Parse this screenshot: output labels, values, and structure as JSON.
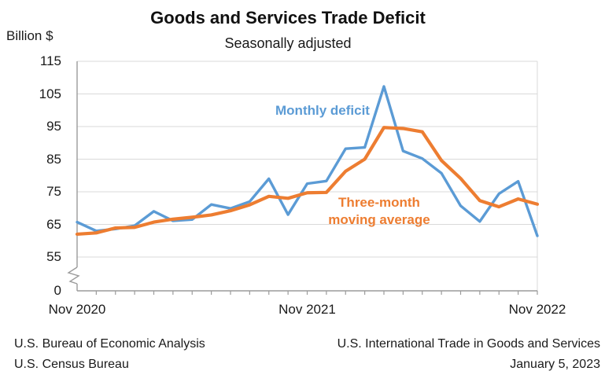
{
  "header": {
    "title": "Goods and Services Trade Deficit",
    "subtitle": "Seasonally adjusted",
    "unit_label": "Billion $"
  },
  "annotations": {
    "monthly_series_label": "Monthly deficit",
    "ma_series_label_line1": "Three-month",
    "ma_series_label_line2": "moving average"
  },
  "footer": {
    "left": [
      "U.S. Bureau of Economic Analysis",
      "U.S. Census Bureau"
    ],
    "right": [
      "U.S. International Trade in Goods and Services",
      "January 5, 2023"
    ]
  },
  "colors": {
    "monthly_line": "#5B9BD5",
    "ma_line": "#ED7D31",
    "gridline": "#D9D9D9",
    "axis": "#9B9B9B"
  },
  "chart_data": {
    "type": "line",
    "title": "Goods and Services Trade Deficit",
    "subtitle": "Seasonally adjusted",
    "ylabel": "Billion $",
    "grid": true,
    "y_axis_break_below": 55,
    "ylim": [
      55,
      115
    ],
    "y_ticks": [
      0,
      55,
      65,
      75,
      85,
      95,
      105,
      115
    ],
    "x_axis_tick_labels": [
      "Nov 2020",
      "Nov 2021",
      "Nov 2022"
    ],
    "x": [
      "Nov 2020",
      "Dec 2020",
      "Jan 2021",
      "Feb 2021",
      "Mar 2021",
      "Apr 2021",
      "May 2021",
      "Jun 2021",
      "Jul 2021",
      "Aug 2021",
      "Sep 2021",
      "Oct 2021",
      "Nov 2021",
      "Dec 2021",
      "Jan 2022",
      "Feb 2022",
      "Mar 2022",
      "Apr 2022",
      "May 2022",
      "Jun 2022",
      "Jul 2022",
      "Aug 2022",
      "Sep 2022",
      "Oct 2022",
      "Nov 2022"
    ],
    "series": [
      {
        "name": "Monthly deficit",
        "color": "#5B9BD5",
        "values": [
          65.7,
          63.0,
          63.6,
          64.6,
          69.0,
          66.1,
          66.5,
          71.1,
          69.9,
          72.0,
          79.0,
          68.0,
          77.5,
          78.3,
          88.2,
          88.6,
          107.3,
          87.5,
          85.2,
          80.7,
          70.7,
          65.9,
          74.4,
          78.2,
          61.5
        ]
      },
      {
        "name": "Three-month moving average",
        "color": "#ED7D31",
        "values": [
          62.0,
          62.4,
          63.9,
          64.1,
          65.7,
          66.6,
          67.2,
          67.9,
          69.2,
          71.0,
          73.6,
          73.0,
          74.7,
          74.8,
          81.3,
          85.0,
          94.7,
          94.4,
          93.4,
          84.6,
          79.1,
          72.3,
          70.4,
          72.8,
          71.2
        ]
      }
    ]
  }
}
